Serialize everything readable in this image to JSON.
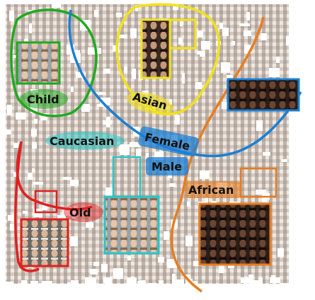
{
  "labels": {
    "child": "Child",
    "asian": "Asian",
    "caucasian": "Caucasian",
    "female": "Female",
    "male": "Male",
    "african": "African",
    "old": "Old"
  },
  "colors": {
    "child": "#1faa1f",
    "asian": "#f2e21a",
    "caucasian": "#27c6c6",
    "gender": "#1a7fd6",
    "african": "#e87c1e",
    "old": "#e02020"
  },
  "icons": {
    "face_cluster": "face-thumbnail-mosaic-icon",
    "face_group": "face-group-icon"
  }
}
